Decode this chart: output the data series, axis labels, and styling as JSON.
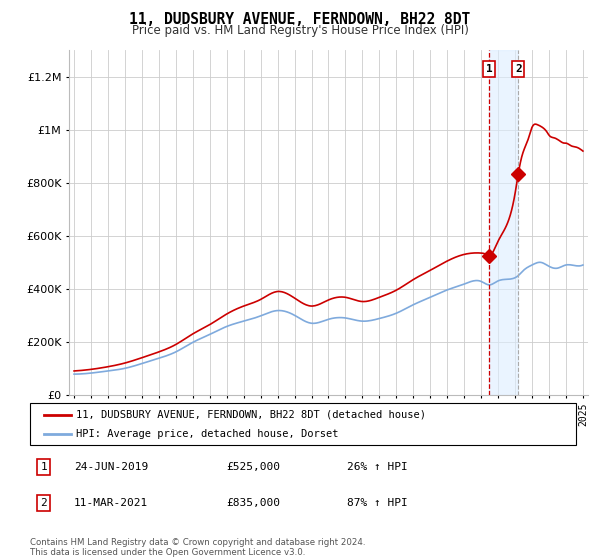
{
  "title": "11, DUDSBURY AVENUE, FERNDOWN, BH22 8DT",
  "subtitle": "Price paid vs. HM Land Registry's House Price Index (HPI)",
  "ylabel_ticks": [
    "£0",
    "£200K",
    "£400K",
    "£600K",
    "£800K",
    "£1M",
    "£1.2M"
  ],
  "ytick_values": [
    0,
    200000,
    400000,
    600000,
    800000,
    1000000,
    1200000
  ],
  "ylim": [
    0,
    1300000
  ],
  "xlim": [
    1994.7,
    2025.3
  ],
  "hpi_color": "#7faadd",
  "price_color": "#cc0000",
  "background_color": "#ffffff",
  "grid_color": "#cccccc",
  "annotation_fill": "#ddeeff",
  "sale1_x": 2019.48,
  "sale1_y": 525000,
  "sale2_x": 2021.19,
  "sale2_y": 835000,
  "sale1_label": "1",
  "sale2_label": "2",
  "legend_line1": "11, DUDSBURY AVENUE, FERNDOWN, BH22 8DT (detached house)",
  "legend_line2": "HPI: Average price, detached house, Dorset",
  "table_entries": [
    {
      "num": "1",
      "date": "24-JUN-2019",
      "price": "£525,000",
      "change": "26% ↑ HPI"
    },
    {
      "num": "2",
      "date": "11-MAR-2021",
      "price": "£835,000",
      "change": "87% ↑ HPI"
    }
  ],
  "footer": "Contains HM Land Registry data © Crown copyright and database right 2024.\nThis data is licensed under the Open Government Licence v3.0."
}
